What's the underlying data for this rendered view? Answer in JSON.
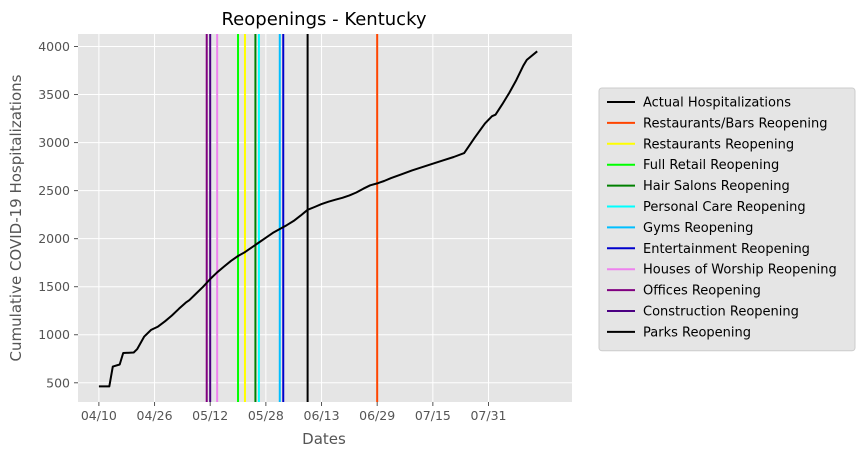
{
  "chart_data": {
    "type": "line",
    "title": "Reopenings - Kentucky",
    "xlabel": "Dates",
    "ylabel": "Cumulative COVID-19 Hospitalizations",
    "x_ticks": [
      "04/10",
      "04/26",
      "05/12",
      "05/28",
      "06/13",
      "06/29",
      "07/15",
      "07/31"
    ],
    "y_ticks": [
      500,
      1000,
      1500,
      2000,
      2500,
      3000,
      3500,
      4000
    ],
    "xlim": [
      "04/04",
      "08/24"
    ],
    "ylim": [
      300,
      4130
    ],
    "grid": true,
    "legend_position": "right",
    "series": [
      {
        "name": "Actual Hospitalizations",
        "color": "#000000",
        "points": [
          [
            "04/10",
            462
          ],
          [
            "04/13",
            462
          ],
          [
            "04/14",
            668
          ],
          [
            "04/16",
            690
          ],
          [
            "04/17",
            810
          ],
          [
            "04/20",
            815
          ],
          [
            "04/21",
            850
          ],
          [
            "04/23",
            980
          ],
          [
            "04/25",
            1050
          ],
          [
            "04/27",
            1085
          ],
          [
            "04/29",
            1140
          ],
          [
            "05/01",
            1200
          ],
          [
            "05/03",
            1270
          ],
          [
            "05/05",
            1335
          ],
          [
            "05/06",
            1360
          ],
          [
            "05/08",
            1430
          ],
          [
            "05/10",
            1500
          ],
          [
            "05/12",
            1580
          ],
          [
            "05/14",
            1650
          ],
          [
            "05/16",
            1710
          ],
          [
            "05/18",
            1770
          ],
          [
            "05/20",
            1820
          ],
          [
            "05/22",
            1860
          ],
          [
            "05/24",
            1910
          ],
          [
            "05/26",
            1960
          ],
          [
            "05/28",
            2010
          ],
          [
            "05/30",
            2060
          ],
          [
            "06/01",
            2100
          ],
          [
            "06/03",
            2140
          ],
          [
            "06/05",
            2185
          ],
          [
            "06/07",
            2240
          ],
          [
            "06/09",
            2300
          ],
          [
            "06/11",
            2330
          ],
          [
            "06/13",
            2360
          ],
          [
            "06/15",
            2385
          ],
          [
            "06/17",
            2405
          ],
          [
            "06/19",
            2425
          ],
          [
            "06/21",
            2450
          ],
          [
            "06/23",
            2480
          ],
          [
            "06/25",
            2520
          ],
          [
            "06/27",
            2555
          ],
          [
            "06/29",
            2575
          ],
          [
            "07/01",
            2600
          ],
          [
            "07/03",
            2630
          ],
          [
            "07/06",
            2670
          ],
          [
            "07/09",
            2710
          ],
          [
            "07/12",
            2745
          ],
          [
            "07/15",
            2780
          ],
          [
            "07/18",
            2815
          ],
          [
            "07/21",
            2850
          ],
          [
            "07/24",
            2890
          ],
          [
            "07/27",
            3050
          ],
          [
            "07/30",
            3200
          ],
          [
            "08/01",
            3275
          ],
          [
            "08/02",
            3290
          ],
          [
            "08/04",
            3400
          ],
          [
            "08/06",
            3520
          ],
          [
            "08/08",
            3650
          ],
          [
            "08/10",
            3800
          ],
          [
            "08/11",
            3860
          ],
          [
            "08/14",
            3950
          ]
        ]
      }
    ],
    "vlines": [
      {
        "name": "Restaurants/Bars Reopening",
        "date": "06/29",
        "color": "#ff4500"
      },
      {
        "name": "Restaurants Reopening",
        "date": "05/22",
        "color": "#ffff00"
      },
      {
        "name": "Full Retail Reopening",
        "date": "05/20",
        "color": "#00ff00"
      },
      {
        "name": "Hair Salons Reopening",
        "date": "05/25",
        "color": "#008000"
      },
      {
        "name": "Personal Care Reopening",
        "date": "05/26",
        "color": "#00ffff"
      },
      {
        "name": "Gyms Reopening",
        "date": "06/01",
        "color": "#00bfff"
      },
      {
        "name": "Entertainment Reopening",
        "date": "06/02",
        "color": "#0000cd"
      },
      {
        "name": "Houses of Worship Reopening",
        "date": "05/14",
        "color": "#ee82ee"
      },
      {
        "name": "Offices Reopening",
        "date": "05/11",
        "color": "#800080"
      },
      {
        "name": "Construction Reopening",
        "date": "05/12",
        "color": "#4b0082"
      },
      {
        "name": "Parks Reopening",
        "date": "06/09",
        "color": "#000000"
      }
    ],
    "legend": [
      {
        "label": "Actual Hospitalizations",
        "color": "#000000"
      },
      {
        "label": "Restaurants/Bars Reopening",
        "color": "#ff4500"
      },
      {
        "label": "Restaurants Reopening",
        "color": "#ffff00"
      },
      {
        "label": "Full Retail Reopening",
        "color": "#00ff00"
      },
      {
        "label": "Hair Salons Reopening",
        "color": "#008000"
      },
      {
        "label": "Personal Care Reopening",
        "color": "#00ffff"
      },
      {
        "label": "Gyms Reopening",
        "color": "#00bfff"
      },
      {
        "label": "Entertainment Reopening",
        "color": "#0000cd"
      },
      {
        "label": "Houses of Worship Reopening",
        "color": "#ee82ee"
      },
      {
        "label": "Offices Reopening",
        "color": "#800080"
      },
      {
        "label": "Construction Reopening",
        "color": "#4b0082"
      },
      {
        "label": "Parks Reopening",
        "color": "#000000"
      }
    ],
    "colors": {
      "plot_background": "#e5e5e5",
      "grid": "#ffffff"
    }
  }
}
